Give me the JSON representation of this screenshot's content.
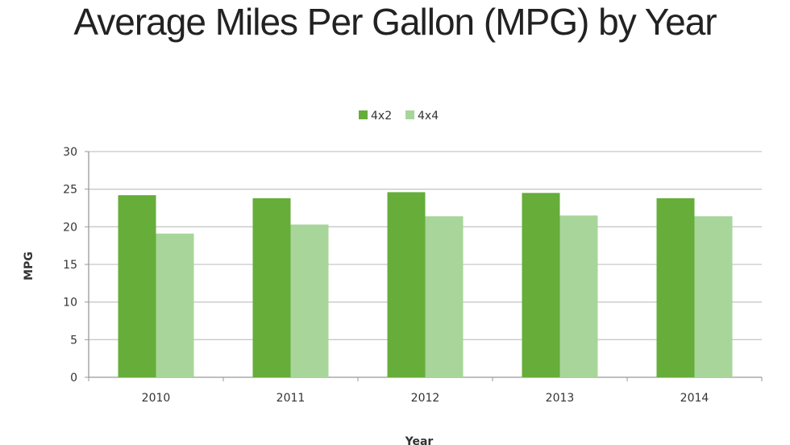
{
  "chart_data": {
    "type": "bar",
    "title": "Average Miles Per Gallon (MPG) by Year",
    "xlabel": "Year",
    "ylabel": "MPG",
    "categories": [
      "2010",
      "2011",
      "2012",
      "2013",
      "2014"
    ],
    "series": [
      {
        "name": "4x2",
        "color": "#66ad3a",
        "values": [
          24.2,
          23.8,
          24.6,
          24.5,
          23.8
        ]
      },
      {
        "name": "4x4",
        "color": "#a8d59a",
        "values": [
          19.1,
          20.3,
          21.4,
          21.5,
          21.4
        ]
      }
    ],
    "ylim": [
      0,
      30
    ],
    "yticks": [
      "0",
      "5",
      "10",
      "15",
      "20",
      "25",
      "30"
    ],
    "grid": true,
    "legend": "top-center"
  }
}
